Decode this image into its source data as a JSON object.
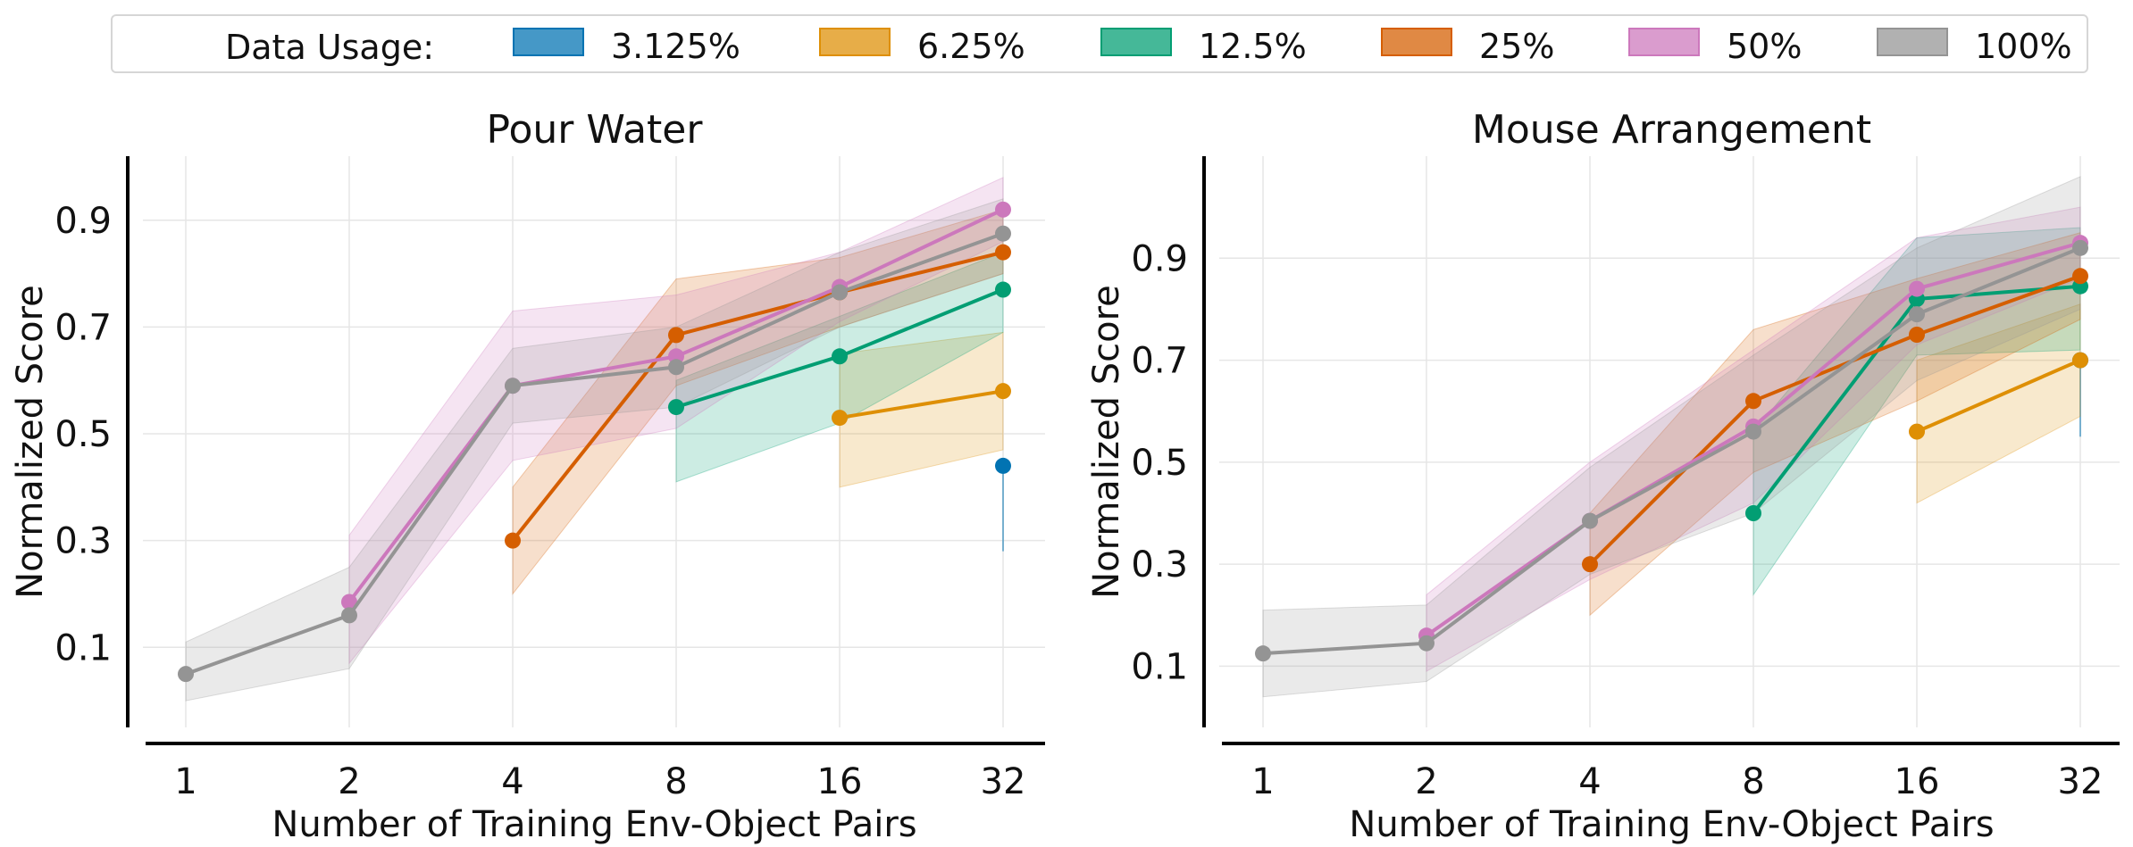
{
  "legend": {
    "title": "Data Usage:",
    "items": [
      {
        "label": "3.125%",
        "color": "#0173b2"
      },
      {
        "label": "6.25%",
        "color": "#de8f05"
      },
      {
        "label": "12.5%",
        "color": "#029e73"
      },
      {
        "label": "25%",
        "color": "#d55e00"
      },
      {
        "label": "50%",
        "color": "#cc78bc"
      },
      {
        "label": "100%",
        "color": "#949494"
      }
    ]
  },
  "chart_data": [
    {
      "type": "line",
      "title": "Pour Water",
      "xlabel": "Number of Training Env-Object Pairs",
      "ylabel": "Normalized Score",
      "categories": [
        "1",
        "2",
        "4",
        "8",
        "16",
        "32"
      ],
      "yticks": [
        "0.1",
        "0.3",
        "0.5",
        "0.7",
        "0.9"
      ],
      "ylim": [
        -0.05,
        1.02
      ],
      "grid": true,
      "series": [
        {
          "name": "3.125%",
          "x": [
            "32"
          ],
          "values": [
            0.44
          ],
          "lower": [
            0.28
          ],
          "upper": [
            0.44
          ]
        },
        {
          "name": "6.25%",
          "x": [
            "16",
            "32"
          ],
          "values": [
            0.53,
            0.58
          ],
          "lower": [
            0.4,
            0.47
          ],
          "upper": [
            0.65,
            0.69
          ]
        },
        {
          "name": "12.5%",
          "x": [
            "8",
            "16",
            "32"
          ],
          "values": [
            0.55,
            0.645,
            0.77
          ],
          "lower": [
            0.41,
            0.52,
            0.69
          ],
          "upper": [
            0.6,
            0.72,
            0.84
          ]
        },
        {
          "name": "25%",
          "x": [
            "4",
            "8",
            "16",
            "32"
          ],
          "values": [
            0.3,
            0.685,
            0.765,
            0.84
          ],
          "lower": [
            0.2,
            0.59,
            0.7,
            0.8
          ],
          "upper": [
            0.4,
            0.79,
            0.83,
            0.92
          ]
        },
        {
          "name": "50%",
          "x": [
            "2",
            "4",
            "8",
            "16",
            "32"
          ],
          "values": [
            0.185,
            0.59,
            0.645,
            0.775,
            0.92
          ],
          "lower": [
            0.07,
            0.45,
            0.51,
            0.71,
            0.86
          ],
          "upper": [
            0.31,
            0.73,
            0.76,
            0.84,
            0.98
          ]
        },
        {
          "name": "100%",
          "x": [
            "1",
            "2",
            "4",
            "8",
            "16",
            "32"
          ],
          "values": [
            0.05,
            0.16,
            0.59,
            0.625,
            0.765,
            0.875
          ],
          "lower": [
            0.0,
            0.06,
            0.52,
            0.55,
            0.7,
            0.8
          ],
          "upper": [
            0.11,
            0.25,
            0.66,
            0.7,
            0.84,
            0.94
          ]
        }
      ]
    },
    {
      "type": "line",
      "title": "Mouse Arrangement",
      "xlabel": "Number of Training Env-Object Pairs",
      "ylabel": "Normalized Score",
      "categories": [
        "1",
        "2",
        "4",
        "8",
        "16",
        "32"
      ],
      "yticks": [
        "0.1",
        "0.3",
        "0.5",
        "0.7",
        "0.9"
      ],
      "ylim": [
        -0.02,
        1.1
      ],
      "grid": true,
      "series": [
        {
          "name": "3.125%",
          "x": [
            "32"
          ],
          "values": [
            0.7
          ],
          "lower": [
            0.55
          ],
          "upper": [
            0.7
          ]
        },
        {
          "name": "6.25%",
          "x": [
            "16",
            "32"
          ],
          "values": [
            0.56,
            0.7
          ],
          "lower": [
            0.42,
            0.59
          ],
          "upper": [
            0.7,
            0.81
          ]
        },
        {
          "name": "12.5%",
          "x": [
            "8",
            "16",
            "32"
          ],
          "values": [
            0.4,
            0.82,
            0.845
          ],
          "lower": [
            0.24,
            0.71,
            0.72
          ],
          "upper": [
            0.56,
            0.94,
            0.96
          ]
        },
        {
          "name": "25%",
          "x": [
            "4",
            "8",
            "16",
            "32"
          ],
          "values": [
            0.3,
            0.62,
            0.75,
            0.865
          ],
          "lower": [
            0.2,
            0.48,
            0.62,
            0.78
          ],
          "upper": [
            0.4,
            0.76,
            0.86,
            0.95
          ]
        },
        {
          "name": "50%",
          "x": [
            "2",
            "4",
            "8",
            "16",
            "32"
          ],
          "values": [
            0.16,
            0.385,
            0.57,
            0.84,
            0.93
          ],
          "lower": [
            0.09,
            0.27,
            0.42,
            0.73,
            0.86
          ],
          "upper": [
            0.24,
            0.5,
            0.72,
            0.94,
            1.0
          ]
        },
        {
          "name": "100%",
          "x": [
            "1",
            "2",
            "4",
            "8",
            "16",
            "32"
          ],
          "values": [
            0.125,
            0.145,
            0.385,
            0.56,
            0.79,
            0.92
          ],
          "lower": [
            0.04,
            0.07,
            0.28,
            0.4,
            0.66,
            0.8
          ],
          "upper": [
            0.21,
            0.22,
            0.49,
            0.71,
            0.92,
            1.06
          ]
        }
      ]
    }
  ]
}
